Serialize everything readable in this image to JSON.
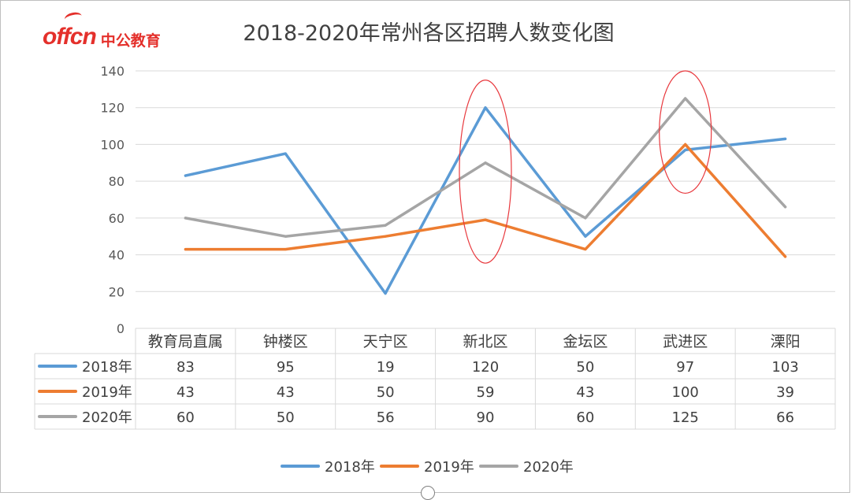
{
  "brand": {
    "logo_mark": "offcn",
    "logo_name": "中公教育"
  },
  "chart_data": {
    "type": "line",
    "title": "2018-2020年常州各区招聘人数变化图",
    "categories": [
      "教育局直属",
      "钟楼区",
      "天宁区",
      "新北区",
      "金坛区",
      "武进区",
      "溧阳"
    ],
    "series": [
      {
        "name": "2018年",
        "color": "#5b9bd5",
        "values": [
          83,
          95,
          19,
          120,
          50,
          97,
          103
        ]
      },
      {
        "name": "2019年",
        "color": "#ed7d31",
        "values": [
          43,
          43,
          50,
          59,
          43,
          100,
          39
        ]
      },
      {
        "name": "2020年",
        "color": "#a5a5a5",
        "values": [
          60,
          50,
          56,
          90,
          60,
          125,
          66
        ]
      }
    ],
    "ylim": [
      0,
      140
    ],
    "yticks": [
      0,
      20,
      40,
      60,
      80,
      100,
      120,
      140
    ],
    "grid": true,
    "data_table": true,
    "legend_position": "bottom",
    "highlights": [
      {
        "category": "新北区",
        "shape": "ellipse",
        "color": "#e8383d"
      },
      {
        "category": "武进区",
        "shape": "ellipse",
        "color": "#e8383d"
      }
    ]
  }
}
